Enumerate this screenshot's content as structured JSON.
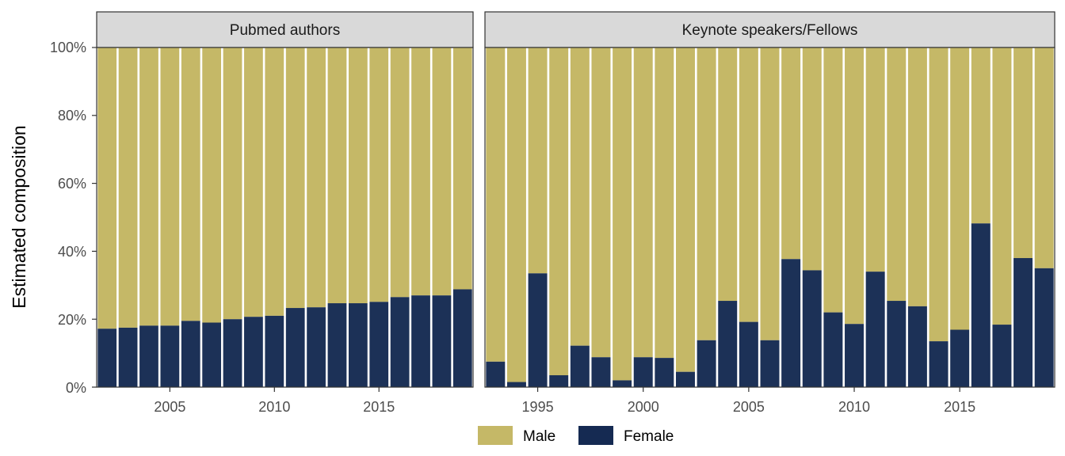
{
  "colors": {
    "male": "#c2b45f",
    "female": "#152a52"
  },
  "chart_data": {
    "type": "bar",
    "stacked": true,
    "ylabel": "Estimated composition",
    "ylim": [
      0,
      100
    ],
    "y_ticks": [
      "0%",
      "20%",
      "40%",
      "60%",
      "80%",
      "100%"
    ],
    "legend": {
      "placement": "bottom",
      "entries": [
        "Male",
        "Female"
      ]
    },
    "panels": [
      {
        "title": "Pubmed authors",
        "x_ticks": [
          "2005",
          "2010",
          "2015"
        ],
        "x": [
          2002,
          2003,
          2004,
          2005,
          2006,
          2007,
          2008,
          2009,
          2010,
          2011,
          2012,
          2013,
          2014,
          2015,
          2016,
          2017,
          2018,
          2019
        ],
        "female": [
          17.2,
          17.5,
          18.1,
          18.1,
          19.5,
          19.0,
          20.0,
          20.7,
          21.0,
          23.3,
          23.5,
          24.7,
          24.7,
          25.1,
          26.5,
          27.0,
          27.0,
          28.8
        ]
      },
      {
        "title": "Keynote speakers/Fellows",
        "x_ticks": [
          "1995",
          "2000",
          "2005",
          "2010",
          "2015"
        ],
        "x": [
          1993,
          1994,
          1995,
          1996,
          1997,
          1998,
          1999,
          2000,
          2001,
          2002,
          2003,
          2004,
          2005,
          2006,
          2007,
          2008,
          2009,
          2010,
          2011,
          2012,
          2013,
          2014,
          2015,
          2016,
          2017,
          2018,
          2019
        ],
        "female": [
          7.5,
          1.5,
          33.5,
          3.5,
          12.2,
          8.8,
          2.0,
          8.8,
          8.6,
          4.5,
          13.8,
          25.4,
          19.2,
          13.8,
          37.7,
          34.4,
          22.0,
          18.6,
          34.0,
          25.4,
          23.8,
          13.5,
          16.9,
          48.2,
          18.4,
          38.0,
          35.0
        ]
      }
    ]
  }
}
